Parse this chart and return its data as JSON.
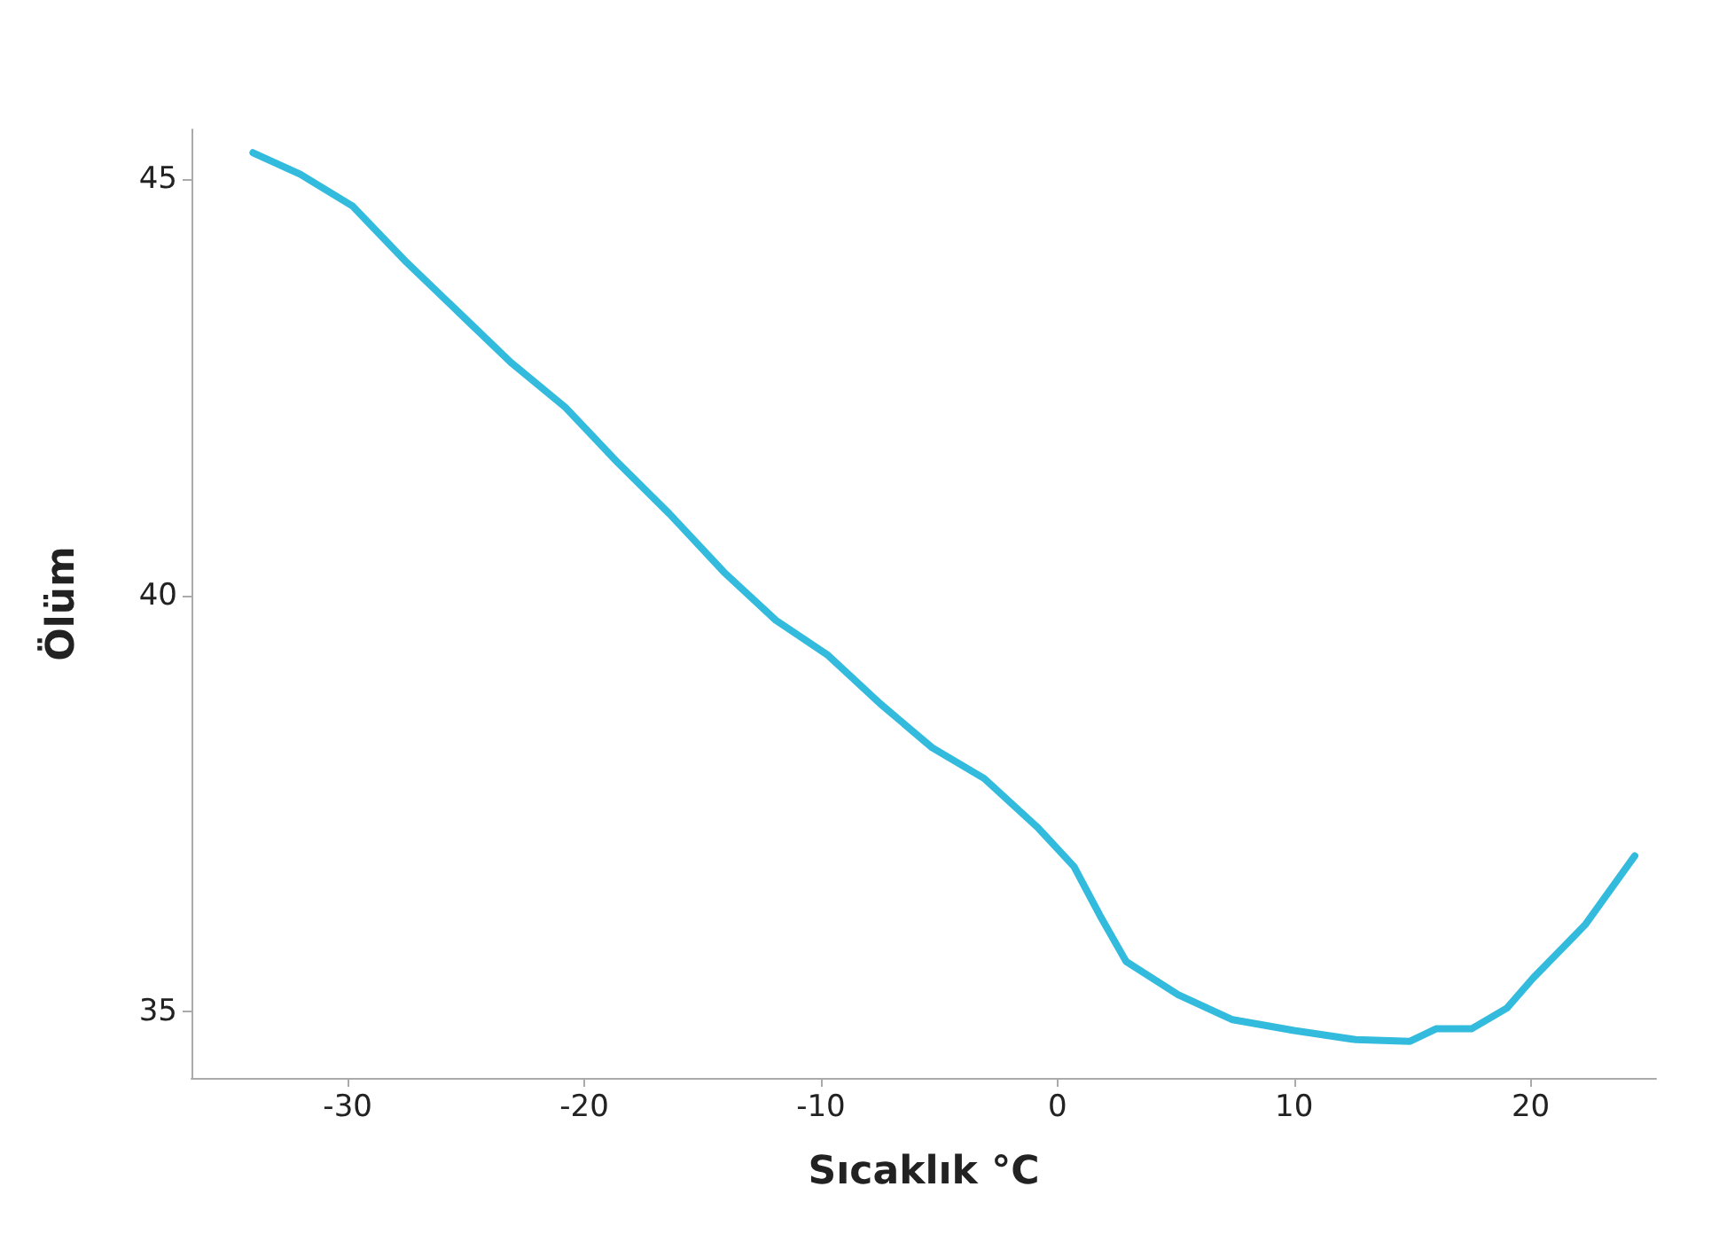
{
  "chart_data": {
    "type": "line",
    "xlabel": "Sıcaklık °C",
    "ylabel": "Ölüm",
    "x": [
      -34.0,
      -32.0,
      -29.8,
      -27.5,
      -25.3,
      -23.1,
      -20.8,
      -18.6,
      -16.4,
      -14.1,
      -11.9,
      -9.7,
      -7.5,
      -5.3,
      -3.1,
      -0.8,
      0.7,
      1.8,
      2.9,
      5.1,
      7.4,
      10.0,
      12.6,
      14.9,
      16.0,
      17.5,
      19.0,
      20.1,
      22.3,
      24.4
    ],
    "series": [
      {
        "color": "#33bbdd",
        "values": [
          45.32,
          45.06,
          44.68,
          44.0,
          43.4,
          42.8,
          42.26,
          41.6,
          40.98,
          40.28,
          39.7,
          39.28,
          38.7,
          38.17,
          37.8,
          37.2,
          36.74,
          36.15,
          35.6,
          35.2,
          34.9,
          34.77,
          34.66,
          34.64,
          34.79,
          34.79,
          35.04,
          35.4,
          36.04,
          36.87
        ]
      }
    ],
    "xlim": [
      -36.6,
      25.3
    ],
    "ylim": [
      34.2,
      45.6
    ],
    "xticks": [
      -30,
      -20,
      -10,
      0,
      10,
      20
    ],
    "yticks": [
      35,
      40,
      45
    ],
    "grid": false,
    "marker": "none",
    "line_style": "solid"
  }
}
